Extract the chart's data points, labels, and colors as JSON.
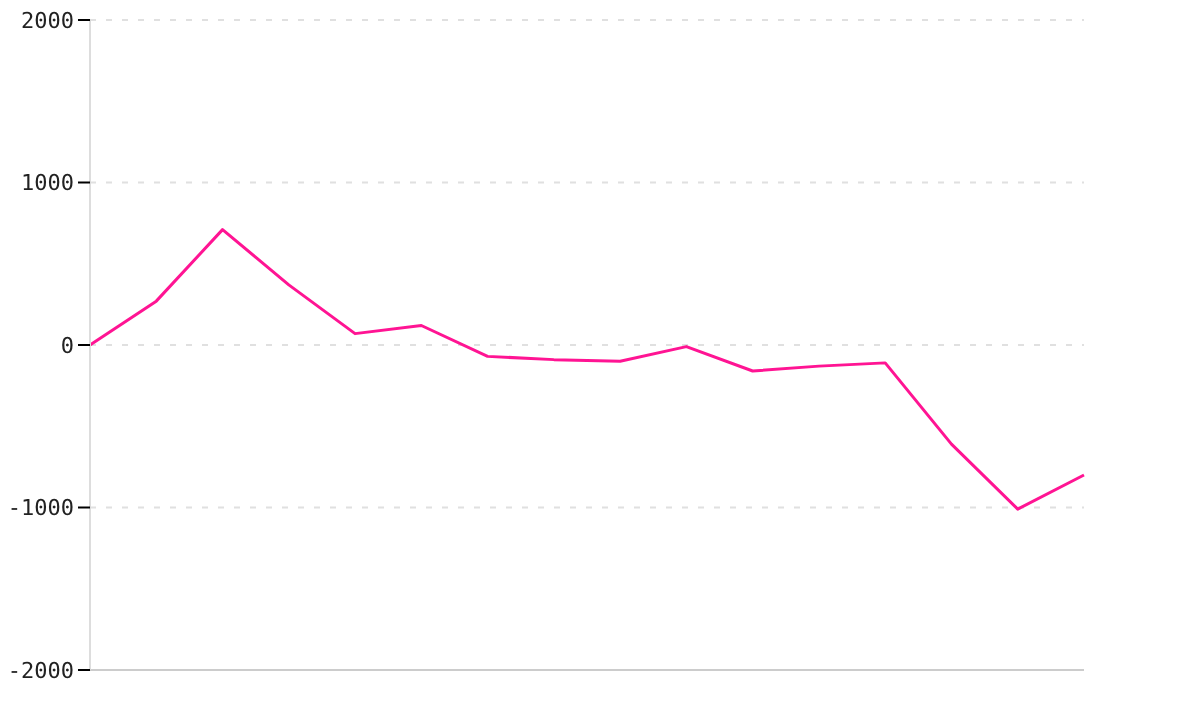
{
  "chart_data": {
    "type": "line",
    "categories": [
      null,
      null,
      null,
      null,
      null,
      null,
      null,
      null,
      null,
      null,
      null,
      null,
      null,
      null,
      null,
      null
    ],
    "series": [
      {
        "color": "#ff1493",
        "values": [
          0,
          270,
          710,
          370,
          70,
          120,
          -70,
          -90,
          -100,
          -10,
          -160,
          -130,
          -110,
          -610,
          -1010,
          -800
        ]
      }
    ],
    "ylim": [
      -2000,
      2000
    ],
    "yticks": [
      -2000,
      -1000,
      0,
      1000,
      2000
    ],
    "grid": "y",
    "marker": "none",
    "line_style": "solid",
    "legend": false
  }
}
